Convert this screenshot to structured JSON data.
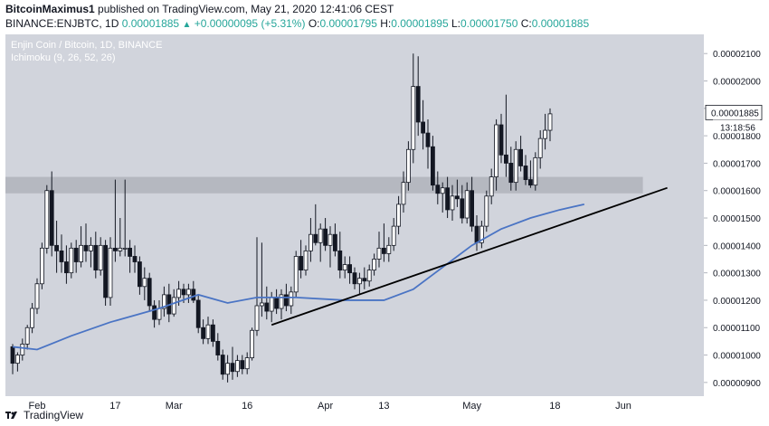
{
  "header": {
    "author": "BitcoinMaximus1",
    "published": "published on TradingView.com, May 21, 2020 12:41:06 CEST",
    "symbol": "BINANCE:ENJBTC, 1D",
    "price": "0.00001885",
    "change": "+0.00000095 (+5.31%)",
    "o_label": "O:",
    "o": "0.00001795",
    "h_label": "H:",
    "h": "0.00001895",
    "l_label": "L:",
    "l": "0.00001750",
    "c_label": "C:",
    "c": "0.00001885"
  },
  "legend": {
    "title": "Enjin Coin / Bitcoin, 1D, BINANCE",
    "indicator": "Ichimoku (9, 26, 52, 26)"
  },
  "footer": {
    "brand": "TradingView"
  },
  "colors": {
    "background": "#d1d4dc",
    "candle_body": "#ffffff",
    "candle_bear": "#131722",
    "ma_line": "#4a74c4",
    "trendline": "#000000",
    "zone": "#b0b3bb",
    "price_up": "#26a69a"
  },
  "chart_data": {
    "type": "candlestick",
    "y_ticks": [
      "0.00000900",
      "0.00001000",
      "0.00001100",
      "0.00001200",
      "0.00001300",
      "0.00001400",
      "0.00001500",
      "0.00001600",
      "0.00001700",
      "0.00001800",
      "0.00001900",
      "0.00002000",
      "0.00002100"
    ],
    "x_ticks": [
      {
        "label": "Feb",
        "index": 5
      },
      {
        "label": "17",
        "index": 21
      },
      {
        "label": "Mar",
        "index": 33
      },
      {
        "label": "16",
        "index": 48
      },
      {
        "label": "Apr",
        "index": 64
      },
      {
        "label": "13",
        "index": 76
      },
      {
        "label": "May",
        "index": 94
      },
      {
        "label": "18",
        "index": 111
      },
      {
        "label": "Jun",
        "index": 125
      }
    ],
    "ylim": [
      8.5e-06,
      2.17e-05
    ],
    "x_count": 138,
    "last_price_label": "0.00001885",
    "countdown_label": "13:18:56",
    "resistance_zone": [
      1.59e-05,
      1.65e-05
    ],
    "trendline": [
      [
        53,
        1.11e-05
      ],
      [
        134,
        1.61e-05
      ]
    ],
    "candles": [
      [
        1.03e-05,
        1.04e-05,
        9.3e-06,
        9.7e-06
      ],
      [
        9.7e-06,
        1.01e-05,
        9.4e-06,
        1e-05
      ],
      [
        1e-05,
        1.06e-05,
        9.8e-06,
        1.04e-05
      ],
      [
        1.04e-05,
        1.11e-05,
        1.02e-05,
        1.1e-05
      ],
      [
        1.1e-05,
        1.19e-05,
        1.08e-05,
        1.17e-05
      ],
      [
        1.17e-05,
        1.28e-05,
        1.15e-05,
        1.26e-05
      ],
      [
        1.26e-05,
        1.41e-05,
        1.24e-05,
        1.39e-05
      ],
      [
        1.39e-05,
        1.62e-05,
        1.37e-05,
        1.6e-05
      ],
      [
        1.6e-05,
        1.67e-05,
        1.36e-05,
        1.4e-05
      ],
      [
        1.4e-05,
        1.49e-05,
        1.3e-05,
        1.38e-05
      ],
      [
        1.38e-05,
        1.44e-05,
        1.3e-05,
        1.34e-05
      ],
      [
        1.34e-05,
        1.4e-05,
        1.26e-05,
        1.3e-05
      ],
      [
        1.3e-05,
        1.41e-05,
        1.28e-05,
        1.39e-05
      ],
      [
        1.39e-05,
        1.42e-05,
        1.3e-05,
        1.34e-05
      ],
      [
        1.34e-05,
        1.47e-05,
        1.32e-05,
        1.4e-05
      ],
      [
        1.4e-05,
        1.48e-05,
        1.34e-05,
        1.38e-05
      ],
      [
        1.38e-05,
        1.43e-05,
        1.32e-05,
        1.4e-05
      ],
      [
        1.4e-05,
        1.45e-05,
        1.28e-05,
        1.31e-05
      ],
      [
        1.31e-05,
        1.43e-05,
        1.29e-05,
        1.4e-05
      ],
      [
        1.4e-05,
        1.42e-05,
        1.18e-05,
        1.21e-05
      ],
      [
        1.21e-05,
        1.43e-05,
        1.18e-05,
        1.39e-05
      ],
      [
        1.39e-05,
        1.64e-05,
        1.34e-05,
        1.38e-05
      ],
      [
        1.38e-05,
        1.5e-05,
        1.36e-05,
        1.39e-05
      ],
      [
        1.39e-05,
        1.64e-05,
        1.36e-05,
        1.39e-05
      ],
      [
        1.39e-05,
        1.42e-05,
        1.3e-05,
        1.36e-05
      ],
      [
        1.36e-05,
        1.4e-05,
        1.3e-05,
        1.34e-05
      ],
      [
        1.34e-05,
        1.36e-05,
        1.22e-05,
        1.25e-05
      ],
      [
        1.25e-05,
        1.32e-05,
        1.2e-05,
        1.28e-05
      ],
      [
        1.28e-05,
        1.3e-05,
        1.16e-05,
        1.18e-05
      ],
      [
        1.18e-05,
        1.2e-05,
        1.1e-05,
        1.13e-05
      ],
      [
        1.13e-05,
        1.2e-05,
        1.11e-05,
        1.17e-05
      ],
      [
        1.17e-05,
        1.25e-05,
        1.14e-05,
        1.22e-05
      ],
      [
        1.22e-05,
        1.26e-05,
        1.12e-05,
        1.15e-05
      ],
      [
        1.15e-05,
        1.24e-05,
        1.14e-05,
        1.21e-05
      ],
      [
        1.21e-05,
        1.27e-05,
        1.18e-05,
        1.24e-05
      ],
      [
        1.24e-05,
        1.26e-05,
        1.19e-05,
        1.22e-05
      ],
      [
        1.22e-05,
        1.26e-05,
        1.19e-05,
        1.24e-05
      ],
      [
        1.24e-05,
        1.27e-05,
        1.19e-05,
        1.2e-05
      ],
      [
        1.2e-05,
        1.22e-05,
        1.08e-05,
        1.1e-05
      ],
      [
        1.1e-05,
        1.13e-05,
        1.04e-05,
        1.06e-05
      ],
      [
        1.06e-05,
        1.14e-05,
        1.04e-05,
        1.11e-05
      ],
      [
        1.11e-05,
        1.13e-05,
        1.03e-05,
        1.05e-05
      ],
      [
        1.05e-05,
        1.08e-05,
        9.8e-06,
        1e-05
      ],
      [
        1e-05,
        1.02e-05,
        9.1e-06,
        9.3e-06
      ],
      [
        9.3e-06,
        1e-05,
        9e-06,
        9.7e-06
      ],
      [
        9.7e-06,
        1.03e-05,
        9.1e-06,
        9.4e-06
      ],
      [
        9.4e-06,
        1e-05,
        9.2e-06,
        9.8e-06
      ],
      [
        9.8e-06,
        1e-05,
        9.3e-06,
        9.5e-06
      ],
      [
        9.5e-06,
        1.01e-05,
        9.3e-06,
        9.9e-06
      ],
      [
        9.9e-06,
        1.1e-05,
        9.8e-06,
        1.09e-05
      ],
      [
        1.09e-05,
        1.43e-05,
        1.07e-05,
        1.18e-05
      ],
      [
        1.18e-05,
        1.41e-05,
        1.14e-05,
        1.19e-05
      ],
      [
        1.19e-05,
        1.25e-05,
        1.13e-05,
        1.16e-05
      ],
      [
        1.16e-05,
        1.23e-05,
        1.12e-05,
        1.21e-05
      ],
      [
        1.21e-05,
        1.24e-05,
        1.15e-05,
        1.17e-05
      ],
      [
        1.17e-05,
        1.24e-05,
        1.13e-05,
        1.22e-05
      ],
      [
        1.22e-05,
        1.26e-05,
        1.16e-05,
        1.18e-05
      ],
      [
        1.18e-05,
        1.25e-05,
        1.15e-05,
        1.23e-05
      ],
      [
        1.23e-05,
        1.38e-05,
        1.21e-05,
        1.36e-05
      ],
      [
        1.36e-05,
        1.42e-05,
        1.28e-05,
        1.31e-05
      ],
      [
        1.31e-05,
        1.4e-05,
        1.29e-05,
        1.38e-05
      ],
      [
        1.38e-05,
        1.5e-05,
        1.34e-05,
        1.44e-05
      ],
      [
        1.44e-05,
        1.55e-05,
        1.4e-05,
        1.41e-05
      ],
      [
        1.41e-05,
        1.48e-05,
        1.34e-05,
        1.46e-05
      ],
      [
        1.46e-05,
        1.5e-05,
        1.38e-05,
        1.4e-05
      ],
      [
        1.4e-05,
        1.47e-05,
        1.32e-05,
        1.44e-05
      ],
      [
        1.44e-05,
        1.48e-05,
        1.36e-05,
        1.38e-05
      ],
      [
        1.38e-05,
        1.45e-05,
        1.28e-05,
        1.31e-05
      ],
      [
        1.31e-05,
        1.36e-05,
        1.28e-05,
        1.33e-05
      ],
      [
        1.33e-05,
        1.36e-05,
        1.26e-05,
        1.3e-05
      ],
      [
        1.3e-05,
        1.32e-05,
        1.24e-05,
        1.26e-05
      ],
      [
        1.26e-05,
        1.3e-05,
        1.22e-05,
        1.28e-05
      ],
      [
        1.28e-05,
        1.32e-05,
        1.24e-05,
        1.27e-05
      ],
      [
        1.27e-05,
        1.33e-05,
        1.25e-05,
        1.31e-05
      ],
      [
        1.31e-05,
        1.37e-05,
        1.29e-05,
        1.35e-05
      ],
      [
        1.35e-05,
        1.45e-05,
        1.32e-05,
        1.39e-05
      ],
      [
        1.39e-05,
        1.48e-05,
        1.34e-05,
        1.37e-05
      ],
      [
        1.37e-05,
        1.43e-05,
        1.34e-05,
        1.4e-05
      ],
      [
        1.4e-05,
        1.5e-05,
        1.38e-05,
        1.47e-05
      ],
      [
        1.47e-05,
        1.58e-05,
        1.44e-05,
        1.55e-05
      ],
      [
        1.55e-05,
        1.67e-05,
        1.52e-05,
        1.63e-05
      ],
      [
        1.63e-05,
        1.78e-05,
        1.6e-05,
        1.75e-05
      ],
      [
        1.75e-05,
        2.1e-05,
        1.7e-05,
        1.98e-05
      ],
      [
        1.98e-05,
        2.09e-05,
        1.8e-05,
        1.85e-05
      ],
      [
        1.85e-05,
        1.93e-05,
        1.75e-05,
        1.81e-05
      ],
      [
        1.81e-05,
        1.86e-05,
        1.68e-05,
        1.76e-05
      ],
      [
        1.76e-05,
        1.8e-05,
        1.6e-05,
        1.62e-05
      ],
      [
        1.62e-05,
        1.67e-05,
        1.55e-05,
        1.59e-05
      ],
      [
        1.59e-05,
        1.63e-05,
        1.52e-05,
        1.61e-05
      ],
      [
        1.61e-05,
        1.65e-05,
        1.5e-05,
        1.53e-05
      ],
      [
        1.53e-05,
        1.62e-05,
        1.49e-05,
        1.58e-05
      ],
      [
        1.58e-05,
        1.64e-05,
        1.54e-05,
        1.57e-05
      ],
      [
        1.57e-05,
        1.62e-05,
        1.48e-05,
        1.5e-05
      ],
      [
        1.5e-05,
        1.63e-05,
        1.48e-05,
        1.6e-05
      ],
      [
        1.6e-05,
        1.65e-05,
        1.45e-05,
        1.47e-05
      ],
      [
        1.47e-05,
        1.51e-05,
        1.38e-05,
        1.41e-05
      ],
      [
        1.41e-05,
        1.49e-05,
        1.39e-05,
        1.47e-05
      ],
      [
        1.47e-05,
        1.6e-05,
        1.45e-05,
        1.58e-05
      ],
      [
        1.58e-05,
        1.68e-05,
        1.55e-05,
        1.65e-05
      ],
      [
        1.65e-05,
        1.86e-05,
        1.6e-05,
        1.84e-05
      ],
      [
        1.84e-05,
        1.88e-05,
        1.7e-05,
        1.73e-05
      ],
      [
        1.73e-05,
        1.95e-05,
        1.65e-05,
        1.7e-05
      ],
      [
        1.7e-05,
        1.76e-05,
        1.6e-05,
        1.63e-05
      ],
      [
        1.63e-05,
        1.78e-05,
        1.6e-05,
        1.75e-05
      ],
      [
        1.75e-05,
        1.8e-05,
        1.67e-05,
        1.69e-05
      ],
      [
        1.69e-05,
        1.73e-05,
        1.62e-05,
        1.64e-05
      ],
      [
        1.64e-05,
        1.71e-05,
        1.61e-05,
        1.62e-05
      ],
      [
        1.62e-05,
        1.74e-05,
        1.6e-05,
        1.72e-05
      ],
      [
        1.72e-05,
        1.82e-05,
        1.68e-05,
        1.79e-05
      ],
      [
        1.79e-05,
        1.88e-05,
        1.75e-05,
        1.82e-05
      ],
      [
        1.82e-05,
        1.9e-05,
        1.78e-05,
        1.88e-05
      ]
    ],
    "ma": [
      [
        0,
        1.03e-05
      ],
      [
        5,
        1.02e-05
      ],
      [
        12,
        1.07e-05
      ],
      [
        20,
        1.12e-05
      ],
      [
        30,
        1.17e-05
      ],
      [
        38,
        1.22e-05
      ],
      [
        44,
        1.19e-05
      ],
      [
        50,
        1.21e-05
      ],
      [
        58,
        1.21e-05
      ],
      [
        68,
        1.2e-05
      ],
      [
        76,
        1.2e-05
      ],
      [
        82,
        1.24e-05
      ],
      [
        88,
        1.32e-05
      ],
      [
        94,
        1.4e-05
      ],
      [
        100,
        1.46e-05
      ],
      [
        106,
        1.5e-05
      ],
      [
        112,
        1.53e-05
      ],
      [
        117,
        1.55e-05
      ]
    ]
  }
}
